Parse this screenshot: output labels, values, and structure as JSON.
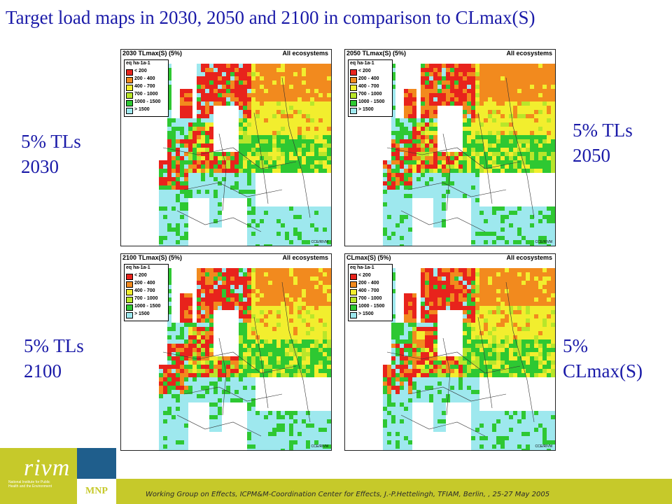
{
  "title": "Target load maps in 2030, 2050 and 2100 in comparison to CLmax(S)",
  "labels": {
    "tl2030": {
      "line1": "5% TLs",
      "line2": "2030"
    },
    "tl2050": {
      "line1": "5% TLs",
      "line2": "2050"
    },
    "tl2100": {
      "line1": "5% TLs",
      "line2": "2100"
    },
    "clmax": {
      "line1": "5%",
      "line2": "CLmax(S)"
    }
  },
  "maps": [
    {
      "title": "2030 TLmax(S) (5%)",
      "ecosystems": "All ecosystems",
      "credit": "CCE/RIVM"
    },
    {
      "title": "2050 TLmax(S) (5%)",
      "ecosystems": "All ecosystems",
      "credit": "CCE/RIVM"
    },
    {
      "title": "2100 TLmax(S) (5%)",
      "ecosystems": "All ecosystems",
      "credit": "CCE/RIVM"
    },
    {
      "title": "CLmax(S) (5%)",
      "ecosystems": "All ecosystems",
      "credit": "CCE/RIVM"
    }
  ],
  "legend": {
    "unit": "eq ha-1a-1",
    "classes": [
      {
        "label": "< 200",
        "color": "#e8231c"
      },
      {
        "label": "200 - 400",
        "color": "#f28a1e"
      },
      {
        "label": "400 - 700",
        "color": "#f2ee2e"
      },
      {
        "label": "700 - 1000",
        "color": "#b8e62a"
      },
      {
        "label": "1000 - 1500",
        "color": "#2ec832"
      },
      {
        "label": "> 1500",
        "color": "#9ee8ee"
      }
    ]
  },
  "footer": {
    "text": "Working Group on Effects, ICPM&M-Coordination Center for Effects, J.-P.Hettelingh, TFIAM, Berlin, , 25-27 May  2005",
    "bar_color": "#c6c92a"
  },
  "logo": {
    "word": "rivm",
    "subtitle": "National Institute for Public Health and the Environment",
    "mnp": "MNP",
    "blue": "#1f5e8c"
  }
}
